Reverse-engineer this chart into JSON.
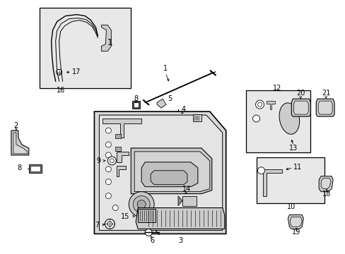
{
  "background_color": "#ffffff",
  "line_color": "#000000",
  "figsize": [
    4.89,
    3.6
  ],
  "dpi": 100,
  "inset_bg": "#e8e8e8",
  "door_bg": "#e0e0e0",
  "white": "#ffffff"
}
